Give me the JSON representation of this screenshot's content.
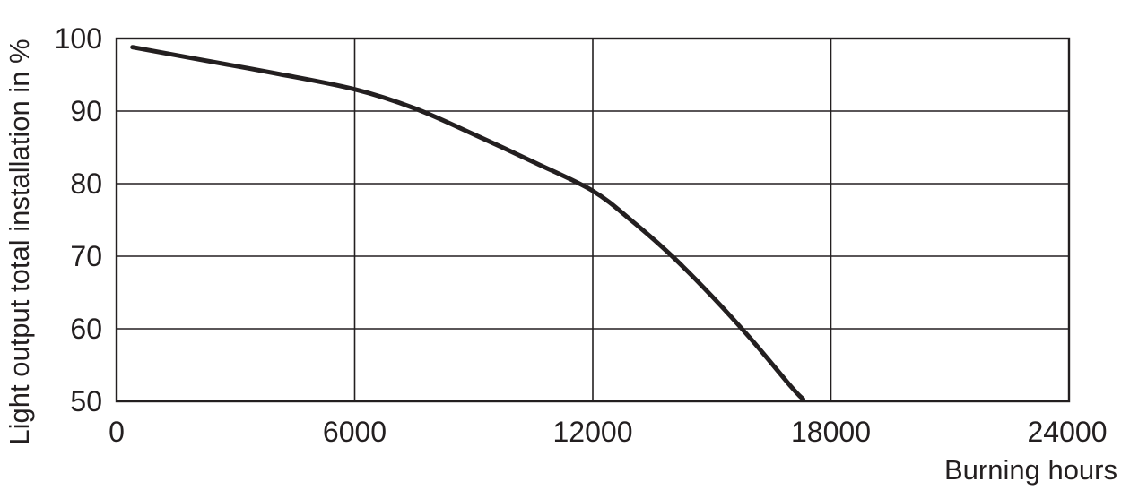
{
  "chart_data": {
    "type": "line",
    "title": "",
    "xlabel": "Burning hours",
    "ylabel": "Light output total installation in %",
    "xlim": [
      0,
      24000
    ],
    "ylim": [
      50,
      100
    ],
    "xticks": [
      "0",
      "6000",
      "12000",
      "18000",
      "24000"
    ],
    "yticks": [
      "50",
      "60",
      "70",
      "80",
      "90",
      "100"
    ],
    "grid": true,
    "legend": "none",
    "series": [
      {
        "x": [
          400,
          2000,
          4000,
          6000,
          7500,
          9000,
          10500,
          12000,
          13000,
          14000,
          15000,
          16000,
          17000,
          17300
        ],
        "y": [
          98.8,
          97.2,
          95.2,
          93.0,
          90.4,
          86.8,
          83.0,
          79.0,
          74.8,
          70.0,
          64.5,
          58.5,
          52.0,
          50.3
        ]
      }
    ],
    "colors": {
      "line": "#231f20",
      "grid": "#231f20",
      "text": "#231f20"
    }
  }
}
